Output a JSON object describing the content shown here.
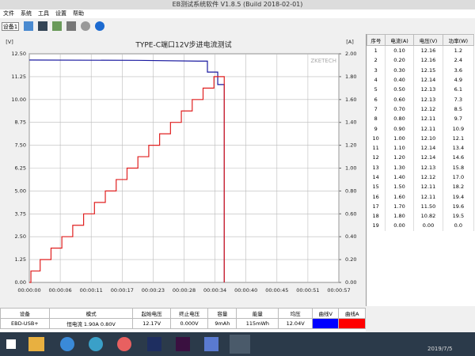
{
  "window": {
    "title": "EB测试系统软件 V1.8.5 (Build 2018-02-01)",
    "menu": [
      "文件",
      "系统",
      "工具",
      "设置",
      "帮助"
    ],
    "device_button": "设备1"
  },
  "chart_data": {
    "type": "line",
    "title": "TYPE-C端口12V步进电流测试",
    "watermark": "ZKETECH",
    "ylabel": "[V]",
    "y2label": "[A]",
    "xlim": [
      0,
      57
    ],
    "xticks": [
      {
        "value": 0,
        "label": "00:00:00"
      },
      {
        "value": 5.7,
        "label": "00:00:06"
      },
      {
        "value": 11.4,
        "label": "00:00:11"
      },
      {
        "value": 17.1,
        "label": "00:00:17"
      },
      {
        "value": 22.8,
        "label": "00:00:23"
      },
      {
        "value": 28.5,
        "label": "00:00:28"
      },
      {
        "value": 34.2,
        "label": "00:00:34"
      },
      {
        "value": 39.9,
        "label": "00:00:40"
      },
      {
        "value": 45.6,
        "label": "00:00:45"
      },
      {
        "value": 51.3,
        "label": "00:00:51"
      },
      {
        "value": 57,
        "label": "00:00:57"
      }
    ],
    "ylim": [
      0,
      12.5
    ],
    "yticks": [
      {
        "value": 0,
        "label": "0.00"
      },
      {
        "value": 1.25,
        "label": "1.25"
      },
      {
        "value": 2.5,
        "label": "2.50"
      },
      {
        "value": 3.75,
        "label": "3.75"
      },
      {
        "value": 5,
        "label": "5.00"
      },
      {
        "value": 6.25,
        "label": "6.25"
      },
      {
        "value": 7.5,
        "label": "7.50"
      },
      {
        "value": 8.75,
        "label": "8.75"
      },
      {
        "value": 10,
        "label": "10.00"
      },
      {
        "value": 11.25,
        "label": "11.25"
      },
      {
        "value": 12.5,
        "label": "12.50"
      }
    ],
    "y2lim": [
      0,
      2
    ],
    "y2ticks": [
      {
        "value": 0,
        "label": "0.00"
      },
      {
        "value": 0.2,
        "label": "0.20"
      },
      {
        "value": 0.4,
        "label": "0.40"
      },
      {
        "value": 0.6,
        "label": "0.60"
      },
      {
        "value": 0.8,
        "label": "0.80"
      },
      {
        "value": 1,
        "label": "1.00"
      },
      {
        "value": 1.2,
        "label": "1.20"
      },
      {
        "value": 1.4,
        "label": "1.40"
      },
      {
        "value": 1.6,
        "label": "1.60"
      },
      {
        "value": 1.8,
        "label": "1.80"
      },
      {
        "value": 2,
        "label": "2.00"
      }
    ],
    "grid": true,
    "series": [
      {
        "color": "#1a1aa0",
        "x": [
          0,
          20,
          31,
          32.8,
          32.8,
          34.7,
          34.7,
          35.9,
          35.9
        ],
        "values": [
          12.16,
          12.14,
          12.1,
          12.1,
          11.5,
          11.5,
          10.82,
          10.82,
          0
        ]
      },
      {
        "color": "#e02020",
        "axis": "y2",
        "x": [
          0,
          0.3,
          0.3,
          2,
          2,
          4,
          4,
          6,
          6,
          8,
          8,
          10,
          10,
          12,
          12,
          14,
          14,
          16,
          16,
          18,
          18,
          20,
          20,
          22,
          22,
          24,
          24,
          26,
          26,
          28,
          28,
          30,
          30,
          32,
          32,
          34,
          34,
          35.9,
          35.9
        ],
        "values": [
          0,
          0,
          0.1,
          0.1,
          0.2,
          0.2,
          0.3,
          0.3,
          0.4,
          0.4,
          0.5,
          0.5,
          0.6,
          0.6,
          0.7,
          0.7,
          0.8,
          0.8,
          0.9,
          0.9,
          1.0,
          1.0,
          1.1,
          1.1,
          1.2,
          1.2,
          1.3,
          1.3,
          1.4,
          1.4,
          1.5,
          1.5,
          1.6,
          1.6,
          1.7,
          1.7,
          1.8,
          1.8,
          0
        ]
      }
    ]
  },
  "table": {
    "header": [
      "序号",
      "电流(A)",
      "电压(V)",
      "功率(W)"
    ],
    "rows": [
      [
        "1",
        "0.10",
        "12.16",
        "1.2"
      ],
      [
        "2",
        "0.20",
        "12.16",
        "2.4"
      ],
      [
        "3",
        "0.30",
        "12.15",
        "3.6"
      ],
      [
        "4",
        "0.40",
        "12.14",
        "4.9"
      ],
      [
        "5",
        "0.50",
        "12.13",
        "6.1"
      ],
      [
        "6",
        "0.60",
        "12.13",
        "7.3"
      ],
      [
        "7",
        "0.70",
        "12.12",
        "8.5"
      ],
      [
        "8",
        "0.80",
        "12.11",
        "9.7"
      ],
      [
        "9",
        "0.90",
        "12.11",
        "10.9"
      ],
      [
        "10",
        "1.00",
        "12.10",
        "12.1"
      ],
      [
        "11",
        "1.10",
        "12.14",
        "13.4"
      ],
      [
        "12",
        "1.20",
        "12.14",
        "14.6"
      ],
      [
        "13",
        "1.30",
        "12.13",
        "15.8"
      ],
      [
        "14",
        "1.40",
        "12.12",
        "17.0"
      ],
      [
        "15",
        "1.50",
        "12.11",
        "18.2"
      ],
      [
        "16",
        "1.60",
        "12.11",
        "19.4"
      ],
      [
        "17",
        "1.70",
        "11.50",
        "19.6"
      ],
      [
        "18",
        "1.80",
        "10.82",
        "19.5"
      ],
      [
        "19",
        "0.00",
        "0.00",
        "0.0"
      ]
    ]
  },
  "status": {
    "header": [
      "设备",
      "模式",
      "起始电压",
      "终止电压",
      "容量",
      "能量",
      "均压",
      "曲线V",
      "曲线A"
    ],
    "row": [
      "EBD-USB+",
      "恒电流 1.90A 0.80V",
      "12.17V",
      "0.000V",
      "9mAh",
      "115mWh",
      "12.04V"
    ],
    "curve_colors": [
      "#0000ff",
      "#ff0000"
    ]
  },
  "taskbar": {
    "date": "2019/7/5"
  }
}
